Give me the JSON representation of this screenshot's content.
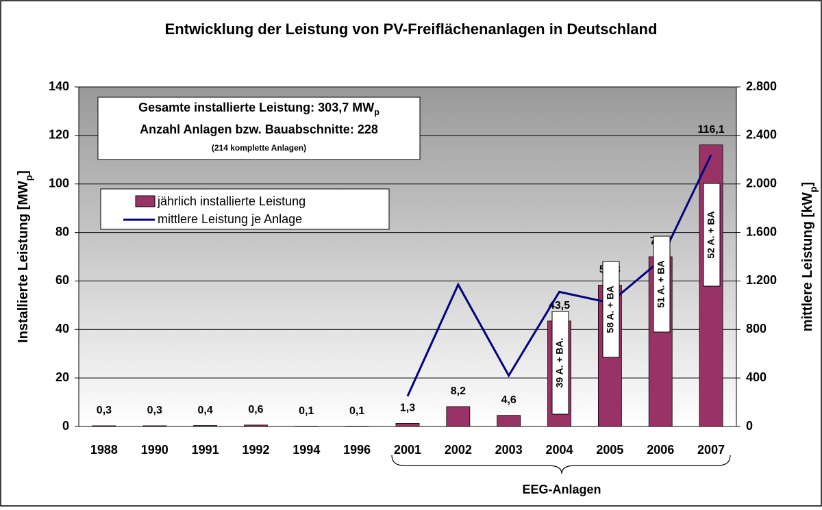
{
  "chart_data": {
    "type": "bar",
    "title": "Entwicklung der Leistung von PV-Freiflächenanlagen in Deutschland",
    "y_label": [
      "Installierte Leistung [MW",
      "p",
      "]"
    ],
    "y2_label": [
      "mittlere Leistung [kW",
      "p",
      "]"
    ],
    "info_box": [
      [
        "Gesamte installierte Leistung: 303,7 MW",
        "p"
      ],
      [
        "Anzahl Anlagen bzw. Bauabschnitte: 228"
      ],
      [
        "(214 komplette Anlagen)"
      ]
    ],
    "categories": [
      "1988",
      "1990",
      "1991",
      "1992",
      "1994",
      "1996",
      "2001",
      "2002",
      "2003",
      "2004",
      "2005",
      "2006",
      "2007"
    ],
    "series": [
      {
        "name": "jährlich installierte Leistung",
        "color": "#993366",
        "values": [
          0.3,
          0.3,
          0.4,
          0.6,
          0.1,
          0.1,
          1.3,
          8.2,
          4.6,
          43.5,
          58.3,
          70.0,
          116.1
        ],
        "value_labels": [
          "0,3",
          "0,3",
          "0,4",
          "0,6",
          "0,1",
          "0,1",
          "1,3",
          "8,2",
          "4,6",
          "43,5",
          "58,3",
          "70,0",
          "116,1"
        ]
      },
      {
        "name": "mittlere Leistung je Anlage",
        "color": "#000080",
        "axis": "y2",
        "values": [
          null,
          null,
          null,
          null,
          null,
          null,
          250,
          1170,
          420,
          1110,
          1020,
          1370,
          2240
        ]
      }
    ],
    "annotations": [
      "39 A. + BA.",
      "58 A. + BA",
      "51 A. + BA",
      "52 A. + BA"
    ],
    "bracket_label": "EEG-Anlagen",
    "ylim": [
      0,
      140
    ],
    "yticks": [
      0,
      20,
      40,
      60,
      80,
      100,
      120,
      140
    ],
    "y2lim": [
      0,
      2800
    ],
    "y2ticks": [
      0,
      400,
      800,
      {
        "value": 1200,
        "label": "1.200"
      },
      {
        "value": 1600,
        "label": "1.600"
      },
      {
        "value": 2000,
        "label": "2.000"
      },
      {
        "value": 2400,
        "label": "2.400"
      },
      {
        "value": 2800,
        "label": "2.800"
      }
    ],
    "grid": true
  }
}
